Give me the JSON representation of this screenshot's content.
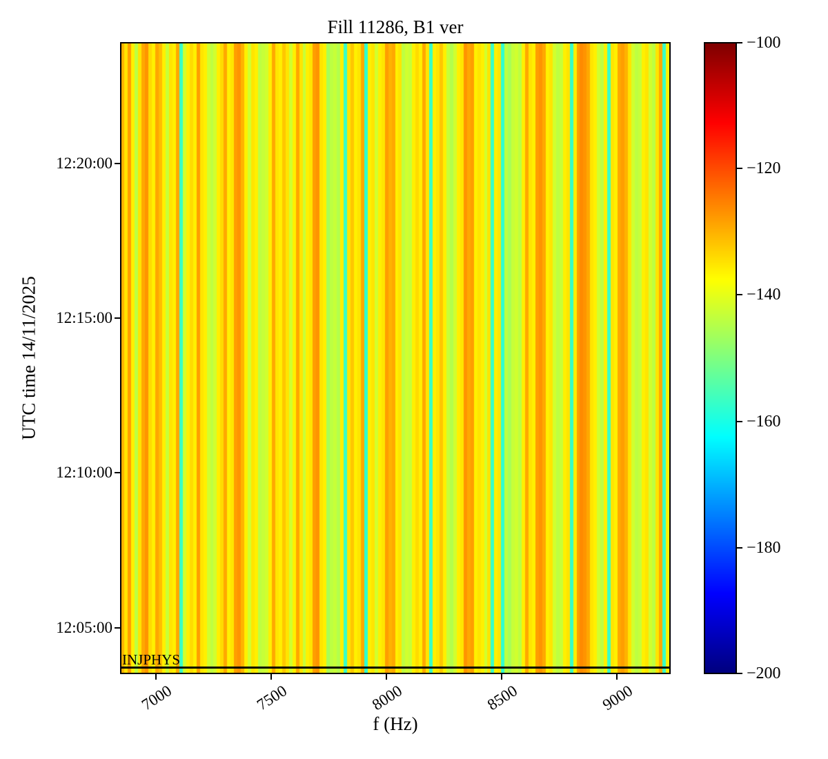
{
  "title": "Fill 11286, B1 ver",
  "chart_data": {
    "type": "heatmap",
    "title": "Fill 11286, B1 ver",
    "xlabel": "f (Hz)",
    "ylabel": "UTC time 14/11/2025",
    "x_range_hz": [
      6845,
      9235
    ],
    "x_ticks": [
      7000,
      7500,
      8000,
      8500,
      9000
    ],
    "x_tick_labels": [
      "7000",
      "7500",
      "8000",
      "8500",
      "9000"
    ],
    "y_range_utc": [
      "12:03:30",
      "12:23:55"
    ],
    "y_ticks_utc": [
      "12:05:00",
      "12:10:00",
      "12:15:00",
      "12:20:00"
    ],
    "grid": false,
    "legend": false,
    "colormap": "jet",
    "colorbar": {
      "vmin": -200,
      "vmax": -100,
      "position": "right",
      "tick_values": [
        -100,
        -120,
        -140,
        -160,
        -180,
        -200
      ],
      "tick_labels": [
        "−100",
        "−120",
        "−140",
        "−160",
        "−180",
        "−200"
      ]
    },
    "beam_mode_annotation": {
      "label": "INJPHYS",
      "time_utc": "12:03:40"
    },
    "spectrum_db_by_freq_bin": [
      -130,
      -135,
      -128,
      -136,
      -144,
      -135,
      -129,
      -127,
      -134,
      -136,
      -129,
      -131,
      -136,
      -143,
      -135,
      -136,
      -129,
      -157,
      -142,
      -136,
      -134,
      -136,
      -128,
      -135,
      -136,
      -142,
      -144,
      -142,
      -136,
      -134,
      -129,
      -136,
      -135,
      -128,
      -127,
      -130,
      -136,
      -142,
      -135,
      -136,
      -144,
      -143,
      -142,
      -136,
      -129,
      -135,
      -136,
      -132,
      -135,
      -142,
      -136,
      -129,
      -135,
      -143,
      -136,
      -135,
      -128,
      -127,
      -135,
      -136,
      -146,
      -144,
      -143,
      -145,
      -136,
      -157,
      -135,
      -132,
      -136,
      -135,
      -129,
      -158,
      -136,
      -135,
      -142,
      -136,
      -135,
      -128,
      -130,
      -129,
      -136,
      -135,
      -144,
      -142,
      -143,
      -136,
      -134,
      -136,
      -129,
      -135,
      -157,
      -136,
      -135,
      -132,
      -136,
      -143,
      -145,
      -142,
      -136,
      -135,
      -127,
      -129,
      -128,
      -136,
      -135,
      -136,
      -142,
      -135,
      -157,
      -136,
      -135,
      -158,
      -144,
      -146,
      -143,
      -142,
      -144,
      -136,
      -129,
      -135,
      -136,
      -128,
      -127,
      -129,
      -136,
      -135,
      -142,
      -144,
      -143,
      -136,
      -135,
      -157,
      -136,
      -128,
      -126,
      -127,
      -129,
      -135,
      -136,
      -142,
      -144,
      -136,
      -157,
      -135,
      -136,
      -129,
      -128,
      -130,
      -135,
      -142,
      -144,
      -143,
      -136,
      -135,
      -142,
      -144,
      -135,
      -129,
      -157,
      -136
    ]
  }
}
